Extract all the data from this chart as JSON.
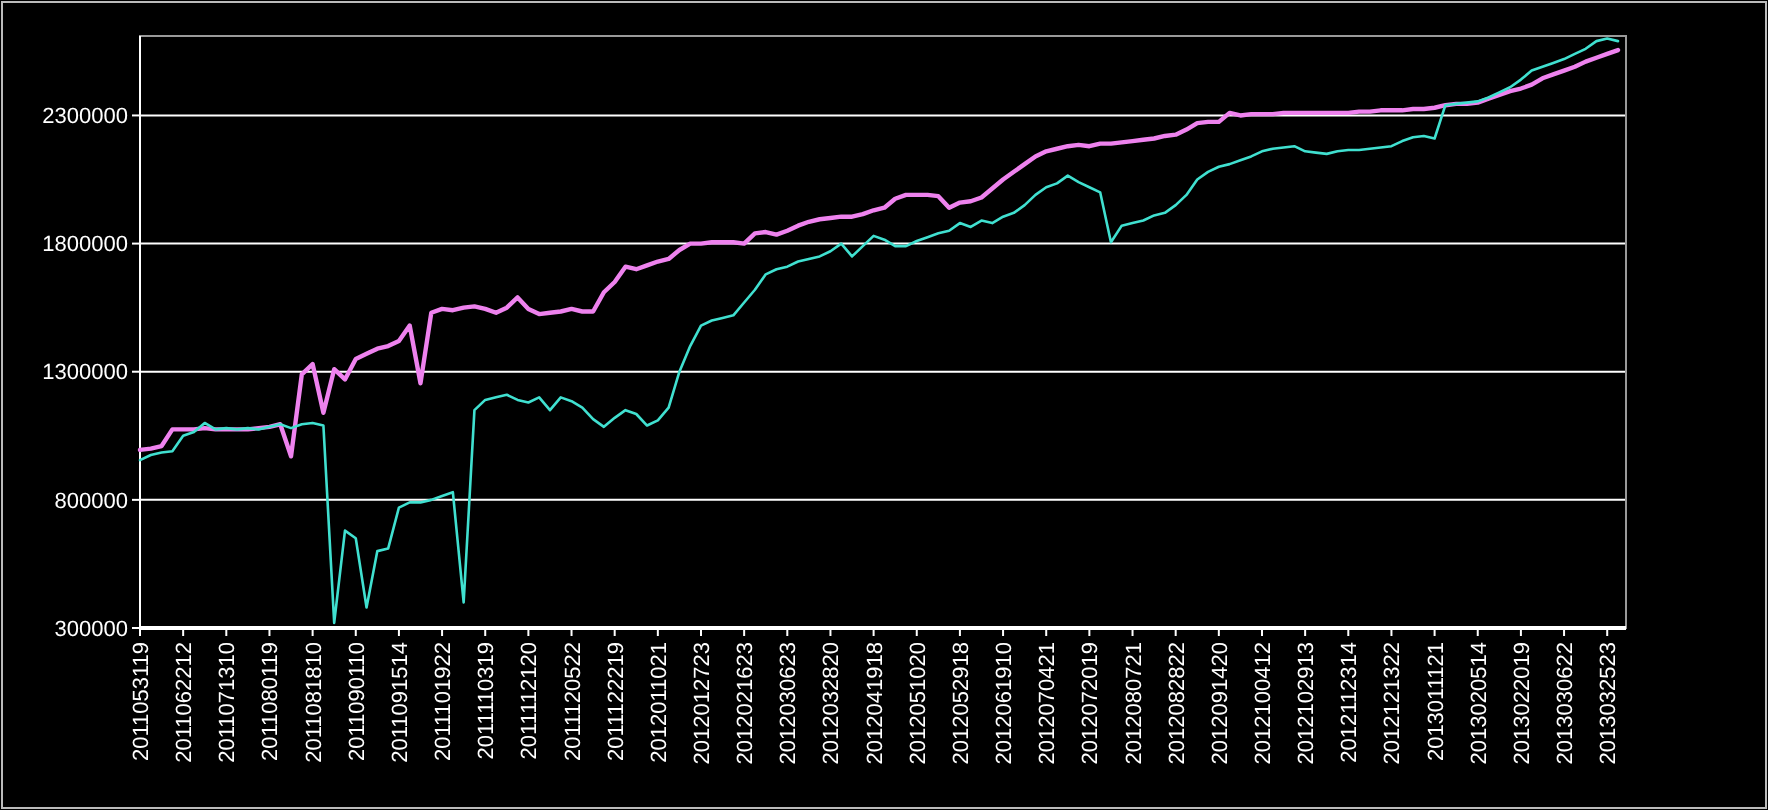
{
  "chart_data": {
    "type": "line",
    "categories": [
      "2011053119",
      null,
      null,
      null,
      "2011062212",
      null,
      null,
      null,
      "2011071310",
      null,
      null,
      null,
      "2011080119",
      null,
      null,
      null,
      "2011081810",
      null,
      null,
      null,
      "2011090110",
      null,
      null,
      null,
      "2011091514",
      null,
      null,
      null,
      "2011101922",
      null,
      null,
      null,
      "2011110319",
      null,
      null,
      null,
      "2011112120",
      null,
      null,
      null,
      "2011120522",
      null,
      null,
      null,
      "2011122219",
      null,
      null,
      null,
      "2012011021",
      null,
      null,
      null,
      "2012012723",
      null,
      null,
      null,
      "2012021623",
      null,
      null,
      null,
      "2012030623",
      null,
      null,
      null,
      "2012032820",
      null,
      null,
      null,
      "2012041918",
      null,
      null,
      null,
      "2012051020",
      null,
      null,
      null,
      "2012052918",
      null,
      null,
      null,
      "2012061910",
      null,
      null,
      null,
      "2012070421",
      null,
      null,
      null,
      "2012072019",
      null,
      null,
      null,
      "2012080721",
      null,
      null,
      null,
      "2012082822",
      null,
      null,
      null,
      "2012091420",
      null,
      null,
      null,
      "2012100412",
      null,
      null,
      null,
      "2012102913",
      null,
      null,
      null,
      "2012112314",
      null,
      null,
      null,
      "2012121322",
      null,
      null,
      null,
      "2013011121",
      null,
      null,
      null,
      "2013020514",
      null,
      null,
      null,
      "2013022019",
      null,
      null,
      null,
      "2013030622",
      null,
      null,
      null,
      "2013032523",
      null
    ],
    "series": [
      {
        "color": "#ee82ee",
        "values": [
          995000,
          1000000,
          1010000,
          1075000,
          1075000,
          1075000,
          1080000,
          1075000,
          1075000,
          1075000,
          1075000,
          1080000,
          1085000,
          1095000,
          970000,
          1290000,
          1330000,
          1140000,
          1310000,
          1270000,
          1350000,
          1370000,
          1390000,
          1400000,
          1420000,
          1480000,
          1255000,
          1530000,
          1545000,
          1540000,
          1550000,
          1555000,
          1545000,
          1530000,
          1550000,
          1590000,
          1545000,
          1525000,
          1530000,
          1535000,
          1545000,
          1535000,
          1535000,
          1610000,
          1650000,
          1710000,
          1700000,
          1715000,
          1730000,
          1740000,
          1775000,
          1800000,
          1800000,
          1805000,
          1805000,
          1805000,
          1800000,
          1840000,
          1845000,
          1835000,
          1850000,
          1870000,
          1885000,
          1895000,
          1900000,
          1905000,
          1905000,
          1915000,
          1930000,
          1940000,
          1975000,
          1990000,
          1990000,
          1990000,
          1985000,
          1940000,
          1960000,
          1965000,
          1980000,
          2015000,
          2050000,
          2080000,
          2110000,
          2140000,
          2160000,
          2170000,
          2180000,
          2185000,
          2180000,
          2190000,
          2190000,
          2195000,
          2200000,
          2205000,
          2210000,
          2220000,
          2225000,
          2245000,
          2270000,
          2275000,
          2275000,
          2310000,
          2300000,
          2305000,
          2305000,
          2305000,
          2310000,
          2310000,
          2310000,
          2310000,
          2310000,
          2310000,
          2310000,
          2315000,
          2315000,
          2320000,
          2320000,
          2320000,
          2325000,
          2325000,
          2330000,
          2340000,
          2345000,
          2345000,
          2350000,
          2365000,
          2380000,
          2395000,
          2405000,
          2420000,
          2445000,
          2460000,
          2475000,
          2490000,
          2510000,
          2525000,
          2540000,
          2555000
        ]
      },
      {
        "color": "#40e0d0",
        "values": [
          955000,
          975000,
          985000,
          990000,
          1050000,
          1065000,
          1100000,
          1075000,
          1080000,
          1075000,
          1080000,
          1075000,
          1085000,
          1095000,
          1080000,
          1095000,
          1100000,
          1090000,
          320000,
          680000,
          650000,
          380000,
          600000,
          610000,
          770000,
          790000,
          790000,
          800000,
          815000,
          830000,
          400000,
          1150000,
          1190000,
          1200000,
          1210000,
          1190000,
          1180000,
          1200000,
          1150000,
          1200000,
          1185000,
          1160000,
          1115000,
          1085000,
          1120000,
          1150000,
          1135000,
          1090000,
          1110000,
          1160000,
          1300000,
          1400000,
          1480000,
          1500000,
          1510000,
          1520000,
          1570000,
          1620000,
          1680000,
          1700000,
          1710000,
          1730000,
          1740000,
          1750000,
          1770000,
          1800000,
          1750000,
          1790000,
          1830000,
          1815000,
          1790000,
          1790000,
          1810000,
          1825000,
          1840000,
          1850000,
          1880000,
          1865000,
          1890000,
          1880000,
          1905000,
          1920000,
          1950000,
          1990000,
          2020000,
          2035000,
          2065000,
          2040000,
          2020000,
          2000000,
          1805000,
          1870000,
          1880000,
          1890000,
          1910000,
          1920000,
          1950000,
          1990000,
          2050000,
          2080000,
          2100000,
          2110000,
          2125000,
          2140000,
          2160000,
          2170000,
          2175000,
          2180000,
          2160000,
          2155000,
          2150000,
          2160000,
          2165000,
          2165000,
          2170000,
          2175000,
          2180000,
          2200000,
          2215000,
          2220000,
          2210000,
          2340000,
          2345000,
          2350000,
          2355000,
          2370000,
          2390000,
          2410000,
          2440000,
          2475000,
          2490000,
          2505000,
          2520000,
          2540000,
          2560000,
          2590000,
          2600000,
          2590000
        ]
      }
    ],
    "ylim": [
      300000,
      2610000
    ],
    "yticks": [
      300000,
      800000,
      1300000,
      1800000,
      2300000
    ],
    "grid": "y"
  }
}
